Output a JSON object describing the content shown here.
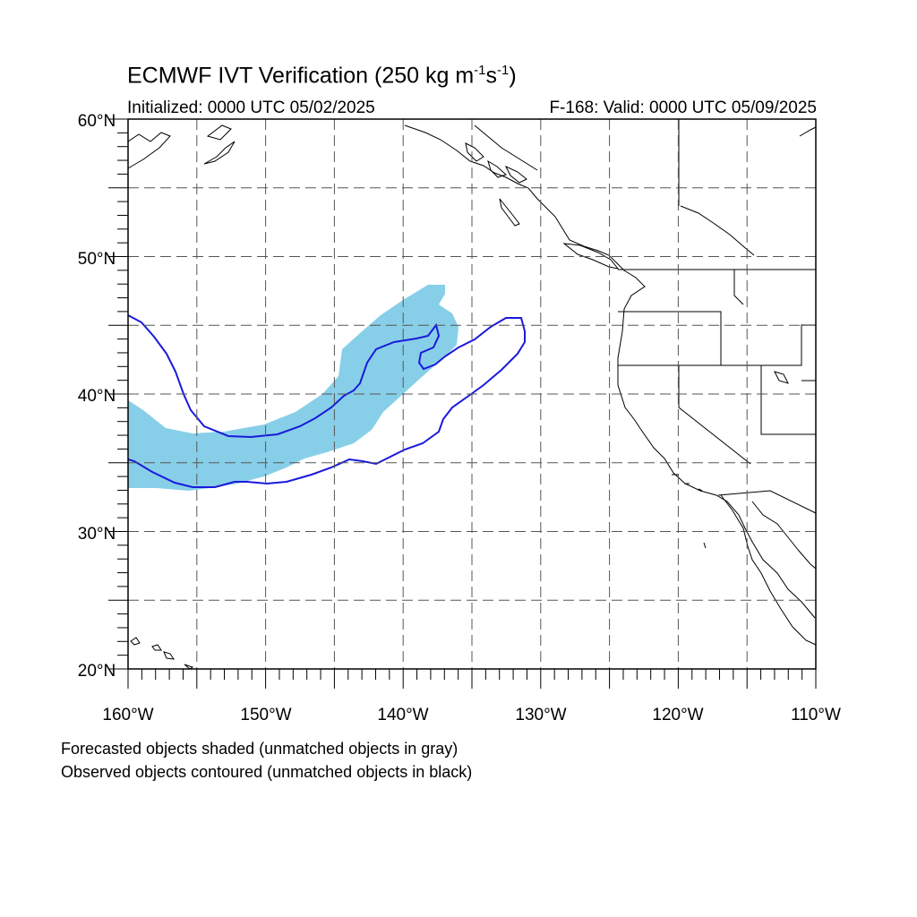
{
  "title": {
    "main": "ECMWF IVT Verification (250 kg m",
    "sup1": "-1",
    "mid": "s",
    "sup2": "-1",
    "end": ")"
  },
  "initialized": "Initialized: 0000 UTC 05/02/2025",
  "valid": "F-168: Valid: 0000 UTC 05/09/2025",
  "lat_labels": [
    "60°N",
    "50°N",
    "40°N",
    "30°N",
    "20°N"
  ],
  "lon_labels": [
    "160°W",
    "150°W",
    "140°W",
    "130°W",
    "120°W",
    "110°W"
  ],
  "notes": {
    "forecast": "Forecasted objects shaded (unmatched objects in gray)",
    "observed": "Observed objects contoured (unmatched objects in black)"
  },
  "colors": {
    "forecast_fill": "#87cfe8",
    "observed_contour": "#1a1adb",
    "coastline": "#000000",
    "grid": "#555555"
  }
}
